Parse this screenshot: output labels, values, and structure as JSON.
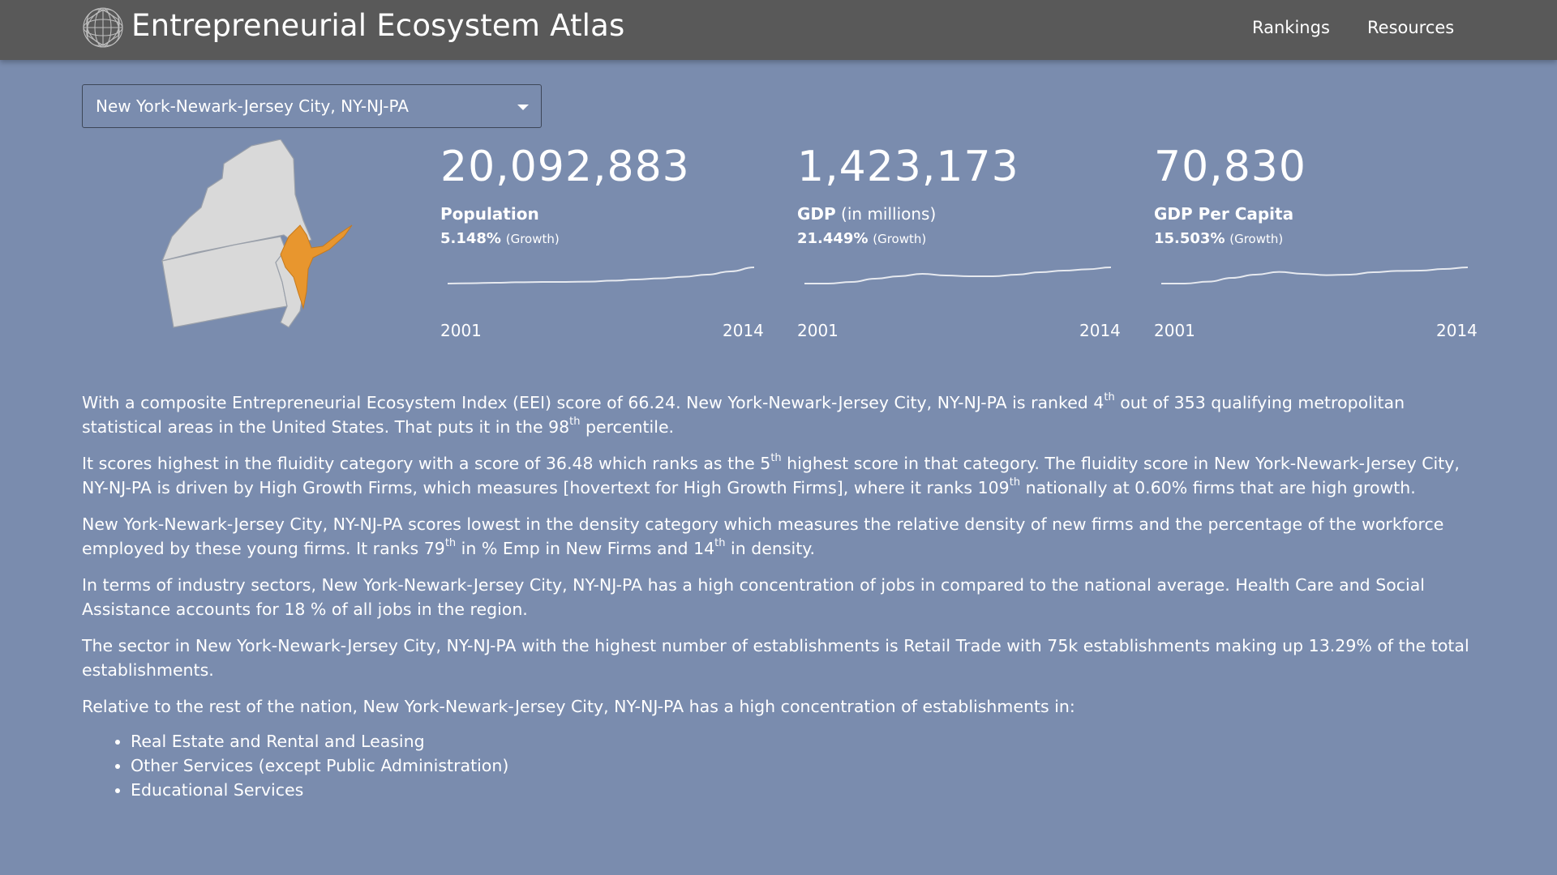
{
  "header": {
    "title": "Entrepreneurial Ecosystem Atlas",
    "logo_icon": "globe-wireframe-icon",
    "nav": [
      {
        "label": "Rankings"
      },
      {
        "label": "Resources"
      }
    ],
    "background": "#595959"
  },
  "metro_select": {
    "value": "New York-Newark-Jersey City, NY-NJ-PA"
  },
  "map": {
    "highlight_color": "#e8962e",
    "state_color": "#d9d9d9"
  },
  "stats": [
    {
      "value": "20,092,883",
      "label_strong": "Population",
      "label_rest": "",
      "growth_pct": "5.148%",
      "growth_suffix": "(Growth)",
      "year_start": "2001",
      "year_end": "2014",
      "trend": [
        0.0,
        0.02,
        0.05,
        0.08,
        0.1,
        0.1,
        0.12,
        0.18,
        0.25,
        0.32,
        0.42,
        0.55,
        0.75,
        1.0
      ]
    },
    {
      "value": "1,423,173",
      "label_strong": "GDP",
      "label_rest": " (in millions)",
      "growth_pct": "21.449%",
      "growth_suffix": "(Growth)",
      "year_start": "2001",
      "year_end": "2014",
      "trend": [
        0.0,
        0.0,
        0.1,
        0.3,
        0.45,
        0.6,
        0.5,
        0.45,
        0.45,
        0.55,
        0.7,
        0.8,
        0.88,
        1.0
      ]
    },
    {
      "value": "70,830",
      "label_strong": "GDP Per Capita",
      "label_rest": "",
      "growth_pct": "15.503%",
      "growth_suffix": "(Growth)",
      "year_start": "2001",
      "year_end": "2014",
      "trend": [
        0.0,
        0.0,
        0.12,
        0.35,
        0.55,
        0.72,
        0.6,
        0.52,
        0.55,
        0.7,
        0.78,
        0.8,
        0.9,
        1.0
      ]
    }
  ],
  "narrative": {
    "p1": {
      "a": "With a composite Entrepreneurial Ecosystem Index (EEI) score of 66.24. New York-Newark-Jersey City, NY-NJ-PA is ranked 4",
      "sup1": "th",
      "b": " out of 353 qualifying metropolitan statistical areas in the United States. That puts it in the 98",
      "sup2": "th",
      "c": " percentile."
    },
    "p2": {
      "a": "It scores highest in the fluidity category with a score of 36.48 which ranks as the 5",
      "sup1": "th",
      "b": " highest score in that category. The fluidity score in New York-Newark-Jersey City, NY-NJ-PA is driven by High Growth Firms, which measures [hovertext for High Growth Firms], where it ranks 109",
      "sup2": "th",
      "c": " nationally at 0.60% firms that are high growth."
    },
    "p3": {
      "a": "New York-Newark-Jersey City, NY-NJ-PA scores lowest in the density category which measures the relative density of new firms and the percentage of the workforce employed by these young firms. It ranks 79",
      "sup1": "th",
      "b": " in % Emp in New Firms and 14",
      "sup2": "th",
      "c": " in density."
    },
    "p4": "In terms of industry sectors, New York-Newark-Jersey City, NY-NJ-PA has a high concentration of jobs in compared to the national average. Health Care and Social Assistance accounts for 18 % of all jobs in the region.",
    "p5": "The sector in New York-Newark-Jersey City, NY-NJ-PA with the highest number of establishments is Retail Trade with 75k establishments making up 13.29% of the total establishments.",
    "p6": "Relative to the rest of the nation, New York-Newark-Jersey City, NY-NJ-PA has a high concentration of establishments in:",
    "list": [
      "Real Estate and Rental and Leasing",
      "Other Services (except Public Administration)",
      "Educational Services"
    ]
  }
}
